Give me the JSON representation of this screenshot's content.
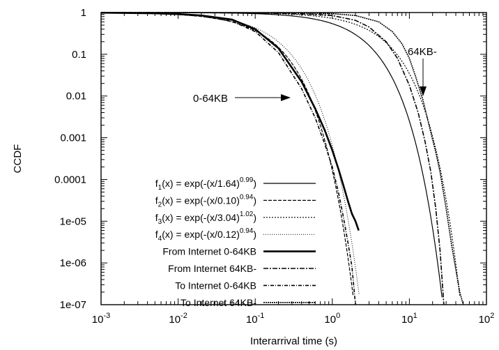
{
  "chart_data": {
    "type": "line",
    "xlabel": "Interarrival time (s)",
    "ylabel": "CCDF",
    "x_scale": "log",
    "y_scale": "log",
    "xlim": [
      0.001,
      100
    ],
    "ylim": [
      1e-07,
      1
    ],
    "x_ticks": [
      {
        "value": 0.001,
        "base": "10",
        "exp": "-3"
      },
      {
        "value": 0.01,
        "base": "10",
        "exp": "-2"
      },
      {
        "value": 0.1,
        "base": "10",
        "exp": "-1"
      },
      {
        "value": 1,
        "base": "10",
        "exp": "0"
      },
      {
        "value": 10,
        "base": "10",
        "exp": "1"
      },
      {
        "value": 100,
        "base": "10",
        "exp": "2"
      }
    ],
    "y_ticks": [
      {
        "value": 1,
        "label": "1"
      },
      {
        "value": 0.1,
        "label": "0.1"
      },
      {
        "value": 0.01,
        "label": "0.01"
      },
      {
        "value": 0.001,
        "label": "0.001"
      },
      {
        "value": 0.0001,
        "label": "0.0001"
      },
      {
        "value": 1e-05,
        "label": "1e-05"
      },
      {
        "value": 1e-06,
        "label": "1e-06"
      },
      {
        "value": 1e-07,
        "label": "1e-07"
      }
    ],
    "grid": false,
    "legend_position": "bottom-left",
    "fits": [
      {
        "fname": "f",
        "sub": "1",
        "mid": "(x) = exp(-(x/1.64)",
        "sup": "0.99",
        "end": ")",
        "scale": 1.64,
        "shape": 0.99,
        "dash": "none",
        "width": 1.2
      },
      {
        "fname": "f",
        "sub": "2",
        "mid": "(x) = exp(-(x/0.10)",
        "sup": "0.94",
        "end": ")",
        "scale": 0.1,
        "shape": 0.94,
        "dash": "5,2",
        "width": 1.2
      },
      {
        "fname": "f",
        "sub": "3",
        "mid": "(x) = exp(-(x/3.04)",
        "sup": "1.02",
        "end": ")",
        "scale": 3.04,
        "shape": 1.02,
        "dash": "2,2",
        "width": 1.2
      },
      {
        "fname": "f",
        "sub": "4",
        "mid": "(x) = exp(-(x/0.12)",
        "sup": "0.94",
        "end": ")",
        "scale": 0.12,
        "shape": 0.94,
        "dash": "1,2",
        "width": 1.0
      }
    ],
    "series": [
      {
        "name": "From Internet 0-64KB",
        "dash": "none",
        "width": 2.6,
        "x": [
          0.001,
          0.005,
          0.01,
          0.02,
          0.05,
          0.1,
          0.2,
          0.4,
          0.6,
          0.8,
          1.0,
          1.2,
          1.4,
          1.6,
          1.8,
          2.0,
          2.2
        ],
        "y": [
          0.99,
          0.96,
          0.92,
          0.85,
          0.68,
          0.4,
          0.14,
          0.022,
          0.005,
          0.0015,
          0.0005,
          0.00018,
          7e-05,
          3e-05,
          1.5e-05,
          1e-05,
          6e-06
        ]
      },
      {
        "name": "From Internet 64KB-",
        "dash": "7,2,2,2",
        "width": 1.6,
        "x": [
          0.001,
          0.01,
          0.1,
          0.5,
          1,
          2,
          3,
          5,
          7,
          10,
          13,
          16,
          19,
          22,
          25,
          28
        ],
        "y": [
          1,
          0.995,
          0.98,
          0.92,
          0.85,
          0.65,
          0.45,
          0.2,
          0.08,
          0.018,
          0.004,
          0.0008,
          0.00015,
          2e-05,
          2e-06,
          1e-07
        ]
      },
      {
        "name": "To Internet 0-64KB",
        "dash": "5,2,1,2",
        "width": 1.6,
        "x": [
          0.001,
          0.005,
          0.01,
          0.02,
          0.05,
          0.1,
          0.2,
          0.4,
          0.6,
          0.8,
          1.0,
          1.2,
          1.4,
          1.6,
          1.8,
          2.0
        ],
        "y": [
          0.99,
          0.95,
          0.9,
          0.82,
          0.62,
          0.35,
          0.11,
          0.015,
          0.003,
          0.0007,
          0.0002,
          5e-05,
          1.2e-05,
          3e-06,
          8e-07,
          1e-07
        ]
      },
      {
        "name": "To Internet 64KB-",
        "dash": "2,1",
        "width": 1.6,
        "x": [
          0.001,
          0.01,
          0.1,
          0.5,
          1,
          2,
          4,
          6,
          8,
          10,
          12,
          15,
          18,
          20,
          22,
          25,
          30,
          35,
          40,
          45,
          50
        ],
        "y": [
          1,
          0.998,
          0.99,
          0.97,
          0.94,
          0.85,
          0.6,
          0.35,
          0.18,
          0.08,
          0.03,
          0.008,
          0.002,
          0.0009,
          0.00045,
          0.00015,
          2e-05,
          3e-06,
          7e-07,
          2e-07,
          1e-07
        ]
      }
    ],
    "annotations": [
      {
        "text": "0-64KB",
        "arrow": "right"
      },
      {
        "text": "64KB-",
        "arrow": "down"
      }
    ]
  }
}
